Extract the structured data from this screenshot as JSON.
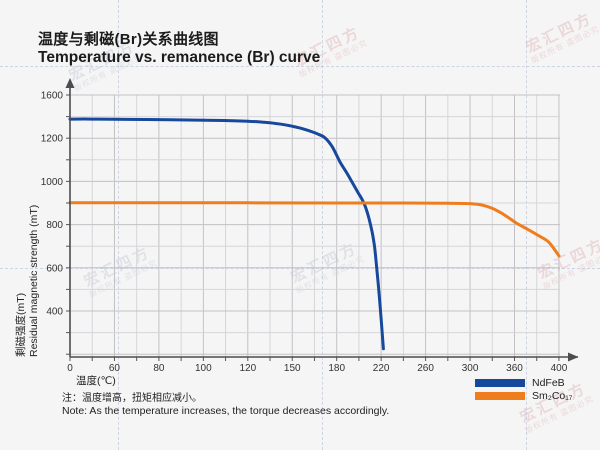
{
  "title": {
    "zh": "温度与剩磁(Br)关系曲线图",
    "en": "Temperature vs. remanence (Br) curve"
  },
  "watermark": {
    "brand": "宏汇四方",
    "notice": "版权所有 盗图必究"
  },
  "notes": {
    "zh": "注：温度增高，扭矩相应减小。",
    "en": "Note: As the temperature increases, the torque decreases accordingly."
  },
  "chart_data": {
    "type": "line",
    "xlabel": "温度(℃)",
    "ylabel_zh": "剩磁强度(mT)",
    "ylabel_en": "Residual magnetic strength (mT)",
    "x_ticks": [
      0,
      60,
      80,
      100,
      120,
      150,
      180,
      220,
      260,
      300,
      360,
      400
    ],
    "y_ticks": [
      1600,
      1200,
      1000,
      800,
      600,
      400
    ],
    "grid": "on",
    "legend_position": "bottom-right",
    "series": [
      {
        "name": "NdFeB",
        "color": "#16489c",
        "points": [
          [
            0,
            1377
          ],
          [
            30,
            1377
          ],
          [
            60,
            1375
          ],
          [
            85,
            1371
          ],
          [
            105,
            1365
          ],
          [
            120,
            1357
          ],
          [
            131,
            1347
          ],
          [
            140,
            1334
          ],
          [
            148,
            1317
          ],
          [
            155,
            1295
          ],
          [
            161,
            1270
          ],
          [
            167,
            1240
          ],
          [
            172,
            1205
          ],
          [
            177,
            1160
          ],
          [
            183,
            1090
          ],
          [
            189,
            1040
          ],
          [
            194,
            995
          ],
          [
            199,
            950
          ],
          [
            203,
            915
          ],
          [
            206,
            880
          ],
          [
            209,
            830
          ],
          [
            212,
            762
          ],
          [
            214,
            700
          ],
          [
            216,
            600
          ],
          [
            218,
            490
          ],
          [
            220,
            360
          ],
          [
            222,
            225
          ]
        ]
      },
      {
        "name": "Sm₂Co₁₇",
        "color": "#ee7d1d",
        "points": [
          [
            0,
            901
          ],
          [
            60,
            901
          ],
          [
            120,
            901
          ],
          [
            180,
            900
          ],
          [
            240,
            900
          ],
          [
            280,
            899
          ],
          [
            300,
            897
          ],
          [
            312,
            893
          ],
          [
            322,
            885
          ],
          [
            332,
            872
          ],
          [
            342,
            854
          ],
          [
            352,
            832
          ],
          [
            362,
            806
          ],
          [
            372,
            778
          ],
          [
            382,
            748
          ],
          [
            391,
            718
          ],
          [
            400,
            655
          ]
        ]
      }
    ]
  }
}
